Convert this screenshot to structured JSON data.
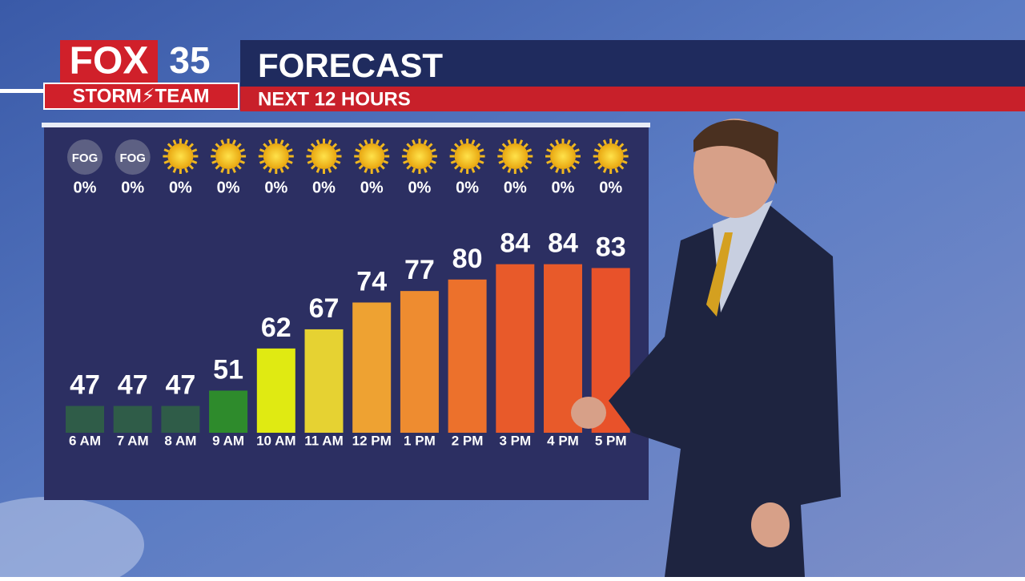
{
  "header": {
    "logo_top": "FOX",
    "logo_number": "35",
    "logo_bottom": "STORM⚡TEAM",
    "title": "FORECAST",
    "subtitle": "NEXT 12 HOURS"
  },
  "chart_data": {
    "type": "bar",
    "categories": [
      "6 AM",
      "7 AM",
      "8 AM",
      "9 AM",
      "10 AM",
      "11 AM",
      "12 PM",
      "1 PM",
      "2 PM",
      "3 PM",
      "4 PM",
      "5 PM"
    ],
    "values": [
      47,
      47,
      47,
      51,
      62,
      67,
      74,
      77,
      80,
      84,
      84,
      83
    ],
    "colors": [
      "#2f5c48",
      "#2f5c48",
      "#2f5c48",
      "#2e8b2c",
      "#e0ea12",
      "#e6d232",
      "#eea232",
      "#ee8c30",
      "#ec712c",
      "#e85a2a",
      "#e85a2a",
      "#e8522a"
    ],
    "ylim": [
      40,
      90
    ],
    "conditions": [
      "FOG",
      "FOG",
      null,
      null,
      null,
      null,
      null,
      null,
      null,
      null,
      null,
      null
    ],
    "precipitation": {
      "values": [
        0,
        0,
        0,
        0,
        0,
        0,
        0,
        0,
        0,
        0,
        0,
        0
      ],
      "value_labels": [
        "0%",
        "0%",
        "0%",
        "0%",
        "0%",
        "0%",
        "0%",
        "0%",
        "0%",
        "0%",
        "0%",
        "0%"
      ]
    }
  }
}
